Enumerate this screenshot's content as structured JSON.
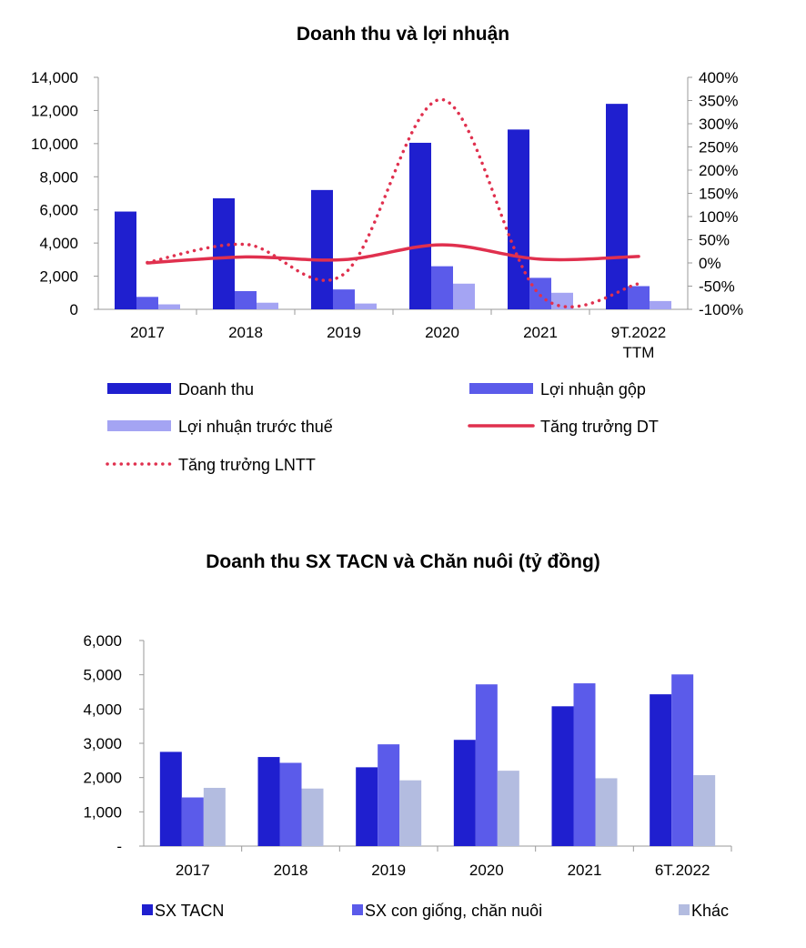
{
  "chart_data": [
    {
      "type": "bar",
      "title": "Doanh thu và lợi nhuận",
      "categories": [
        "2017",
        "2018",
        "2019",
        "2020",
        "2021",
        "9T.2022\nTTM"
      ],
      "ylim": [
        0,
        14000
      ],
      "y_ticks": [
        "0",
        "2,000",
        "4,000",
        "6,000",
        "8,000",
        "10,000",
        "12,000",
        "14,000"
      ],
      "y2lim": [
        -100,
        400
      ],
      "y2_ticks": [
        "-100%",
        "-50%",
        "0%",
        "50%",
        "100%",
        "150%",
        "200%",
        "250%",
        "300%",
        "350%",
        "400%"
      ],
      "series": [
        {
          "name": "Doanh thu",
          "kind": "bar",
          "axis": "left",
          "color": "#1f1fcf",
          "values": [
            5900,
            6700,
            7200,
            10050,
            10850,
            12400
          ]
        },
        {
          "name": "Lợi nhuận gộp",
          "kind": "bar",
          "axis": "left",
          "color": "#5b5bea",
          "values": [
            750,
            1100,
            1200,
            2600,
            1900,
            1400
          ]
        },
        {
          "name": "Lợi nhuận trước thuế",
          "kind": "bar",
          "axis": "left",
          "color": "#a4a4f3",
          "values": [
            300,
            400,
            350,
            1550,
            1000,
            500
          ]
        },
        {
          "name": "Tăng trưởng DT",
          "kind": "line",
          "axis": "right",
          "style": "solid",
          "color": "#e0304e",
          "values": [
            0,
            13,
            7,
            39,
            8,
            14
          ]
        },
        {
          "name": "Tăng trưởng LNTT",
          "kind": "line",
          "axis": "right",
          "style": "dotted",
          "color": "#e0304e",
          "values": [
            1,
            40,
            -24,
            352,
            -70,
            -45
          ]
        }
      ]
    },
    {
      "type": "bar",
      "title": "Doanh thu SX TACN và Chăn nuôi (tỷ đồng)",
      "categories": [
        "2017",
        "2018",
        "2019",
        "2020",
        "2021",
        "6T.2022"
      ],
      "ylim": [
        0,
        6000
      ],
      "y_ticks": [
        "-",
        "1,000",
        "2,000",
        "3,000",
        "4,000",
        "5,000",
        "6,000"
      ],
      "series": [
        {
          "name": "SX TACN",
          "color": "#1f1fcf",
          "values": [
            2750,
            2600,
            2300,
            3100,
            4080,
            4430
          ]
        },
        {
          "name": "SX con giống, chăn nuôi",
          "color": "#5b5bea",
          "values": [
            1420,
            2430,
            2970,
            4720,
            4750,
            5010
          ]
        },
        {
          "name": "Khác",
          "color": "#b3bce0",
          "values": [
            1700,
            1680,
            1920,
            2200,
            1980,
            2070
          ]
        }
      ]
    }
  ]
}
